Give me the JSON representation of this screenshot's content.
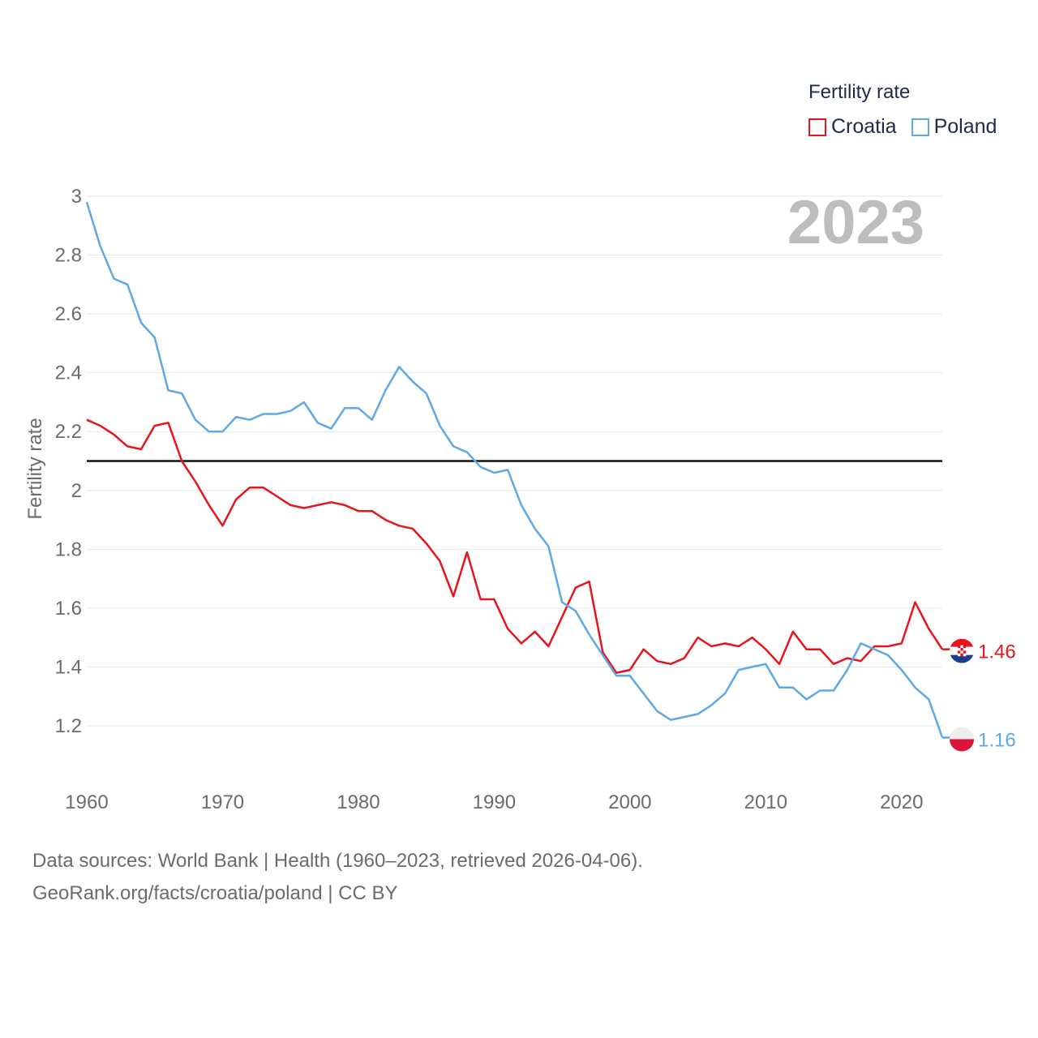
{
  "legend": {
    "title": "Fertility rate",
    "items": [
      {
        "name": "Croatia",
        "color": "#e8141c"
      },
      {
        "name": "Poland",
        "color": "#5ea8e6"
      }
    ]
  },
  "source": {
    "line1": "Data sources: World Bank | Health (1960–2023, retrieved 2026-04-06).",
    "line2": "GeoRank.org/facts/croatia/poland | CC BY"
  },
  "chart_data": {
    "type": "line",
    "title": "Fertility rate",
    "ylabel": "Fertility rate",
    "xlabel": "",
    "current_year": "2023",
    "xlim": [
      1960,
      2023
    ],
    "ylim": [
      1.0,
      3.0
    ],
    "x_ticks": [
      1960,
      1970,
      1980,
      1990,
      2000,
      2010,
      2020
    ],
    "y_ticks": [
      1.2,
      1.4,
      1.6,
      1.8,
      2,
      2.2,
      2.4,
      2.6,
      2.8,
      3
    ],
    "reference_line": 2.1,
    "x": [
      1960,
      1961,
      1962,
      1963,
      1964,
      1965,
      1966,
      1967,
      1968,
      1969,
      1970,
      1971,
      1972,
      1973,
      1974,
      1975,
      1976,
      1977,
      1978,
      1979,
      1980,
      1981,
      1982,
      1983,
      1984,
      1985,
      1986,
      1987,
      1988,
      1989,
      1990,
      1991,
      1992,
      1993,
      1994,
      1995,
      1996,
      1997,
      1998,
      1999,
      2000,
      2001,
      2002,
      2003,
      2004,
      2005,
      2006,
      2007,
      2008,
      2009,
      2010,
      2011,
      2012,
      2013,
      2014,
      2015,
      2016,
      2017,
      2018,
      2019,
      2020,
      2021,
      2022,
      2023
    ],
    "series": [
      {
        "name": "Croatia",
        "color": "#e8141c",
        "end_label": "1.46",
        "values": [
          2.24,
          2.22,
          2.19,
          2.15,
          2.14,
          2.22,
          2.23,
          2.1,
          2.03,
          1.95,
          1.88,
          1.97,
          2.01,
          2.01,
          1.98,
          1.95,
          1.94,
          1.95,
          1.96,
          1.95,
          1.93,
          1.93,
          1.9,
          1.88,
          1.87,
          1.82,
          1.76,
          1.64,
          1.79,
          1.63,
          1.63,
          1.53,
          1.48,
          1.52,
          1.47,
          1.57,
          1.67,
          1.69,
          1.45,
          1.38,
          1.39,
          1.46,
          1.42,
          1.41,
          1.43,
          1.5,
          1.47,
          1.48,
          1.47,
          1.5,
          1.46,
          1.41,
          1.52,
          1.46,
          1.46,
          1.41,
          1.43,
          1.42,
          1.47,
          1.47,
          1.48,
          1.62,
          1.53,
          1.46
        ]
      },
      {
        "name": "Poland",
        "color": "#5ea8e6",
        "end_label": "1.16",
        "values": [
          2.98,
          2.83,
          2.72,
          2.7,
          2.57,
          2.52,
          2.34,
          2.33,
          2.24,
          2.2,
          2.2,
          2.25,
          2.24,
          2.26,
          2.26,
          2.27,
          2.3,
          2.23,
          2.21,
          2.28,
          2.28,
          2.24,
          2.34,
          2.42,
          2.37,
          2.33,
          2.22,
          2.15,
          2.13,
          2.08,
          2.06,
          2.07,
          1.95,
          1.87,
          1.81,
          1.62,
          1.59,
          1.51,
          1.44,
          1.37,
          1.37,
          1.31,
          1.25,
          1.22,
          1.23,
          1.24,
          1.27,
          1.31,
          1.39,
          1.4,
          1.41,
          1.33,
          1.33,
          1.29,
          1.32,
          1.32,
          1.39,
          1.48,
          1.46,
          1.44,
          1.39,
          1.33,
          1.29,
          1.16
        ]
      }
    ]
  }
}
